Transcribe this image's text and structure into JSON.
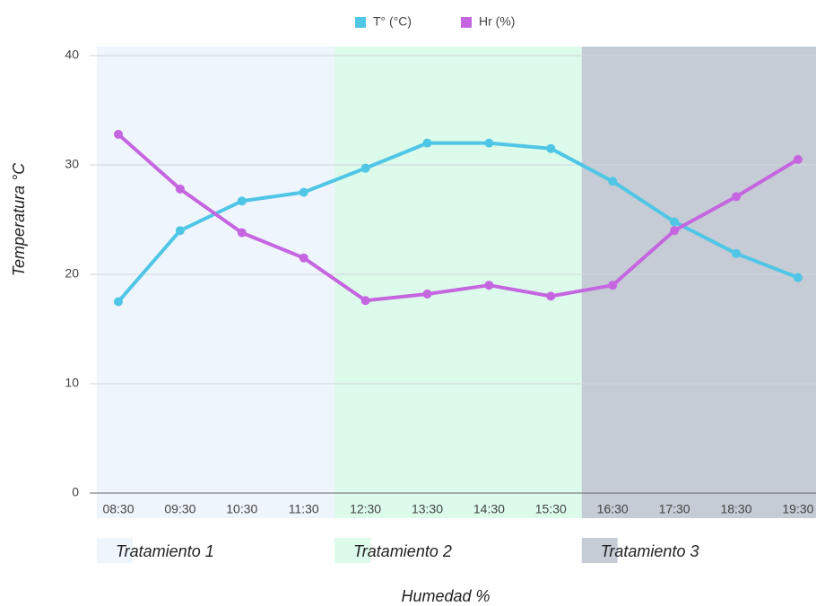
{
  "chart_data": {
    "type": "line",
    "ylabel": "Temperatura °C",
    "xlabel": "Humedad %",
    "categories": [
      "08:30",
      "09:30",
      "10:30",
      "11:30",
      "12:30",
      "13:30",
      "14:30",
      "15:30",
      "16:30",
      "17:30",
      "18:30",
      "19:30"
    ],
    "series": [
      {
        "name": "T° (°C)",
        "color": "#4fc6e6",
        "values": [
          17.5,
          24,
          26.7,
          27.5,
          29.7,
          32,
          32,
          31.5,
          28.5,
          24.8,
          21.9,
          19.7
        ]
      },
      {
        "name": "Hr (%)",
        "color": "#c566e0",
        "values": [
          32.8,
          27.8,
          23.8,
          21.5,
          17.6,
          18.2,
          19,
          18,
          19,
          24,
          27.1,
          30.5
        ]
      }
    ],
    "ylim": [
      0,
      40
    ],
    "yticks": [
      0,
      10,
      20,
      30,
      40
    ],
    "grid": true,
    "treatments": [
      {
        "label": "Tratamiento 1",
        "color": "#eef5fd"
      },
      {
        "label": "Tratamiento 2",
        "color": "#dcfbea"
      },
      {
        "label": "Tratamiento 3",
        "color": "#c5ccd5"
      }
    ]
  }
}
